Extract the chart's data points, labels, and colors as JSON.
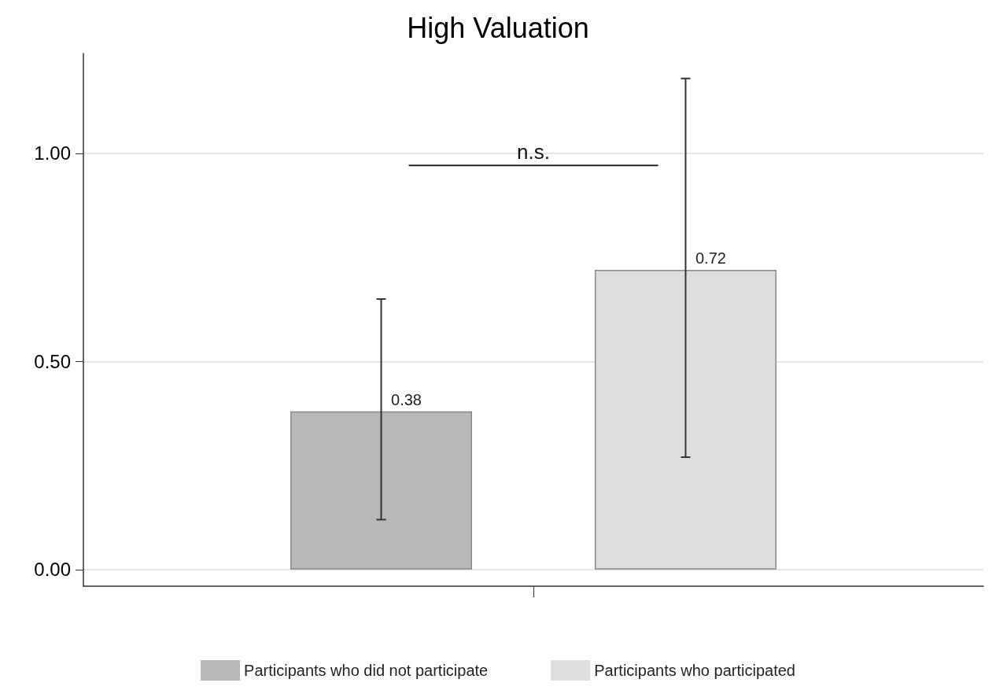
{
  "chart_data": {
    "type": "bar",
    "title": "High Valuation",
    "categories": [
      null
    ],
    "series": [
      {
        "name": "Participants who did not participate",
        "color": "#b8b8b8",
        "values": [
          0.38
        ],
        "errors": [
          [
            0.12,
            0.65
          ]
        ]
      },
      {
        "name": "Participants who participated",
        "color": "#dedede",
        "values": [
          0.72
        ],
        "errors": [
          [
            0.27,
            1.18
          ]
        ]
      }
    ],
    "ylim": [
      -0.04,
      1.24
    ],
    "yticks": [
      {
        "value": 0,
        "label": "0.00"
      },
      {
        "value": 0.5,
        "label": "0.50"
      },
      {
        "value": 1,
        "label": "1.00"
      }
    ],
    "grid": "y",
    "legend": "bottom",
    "data_labels": true,
    "annotations": [
      "n.s."
    ]
  }
}
